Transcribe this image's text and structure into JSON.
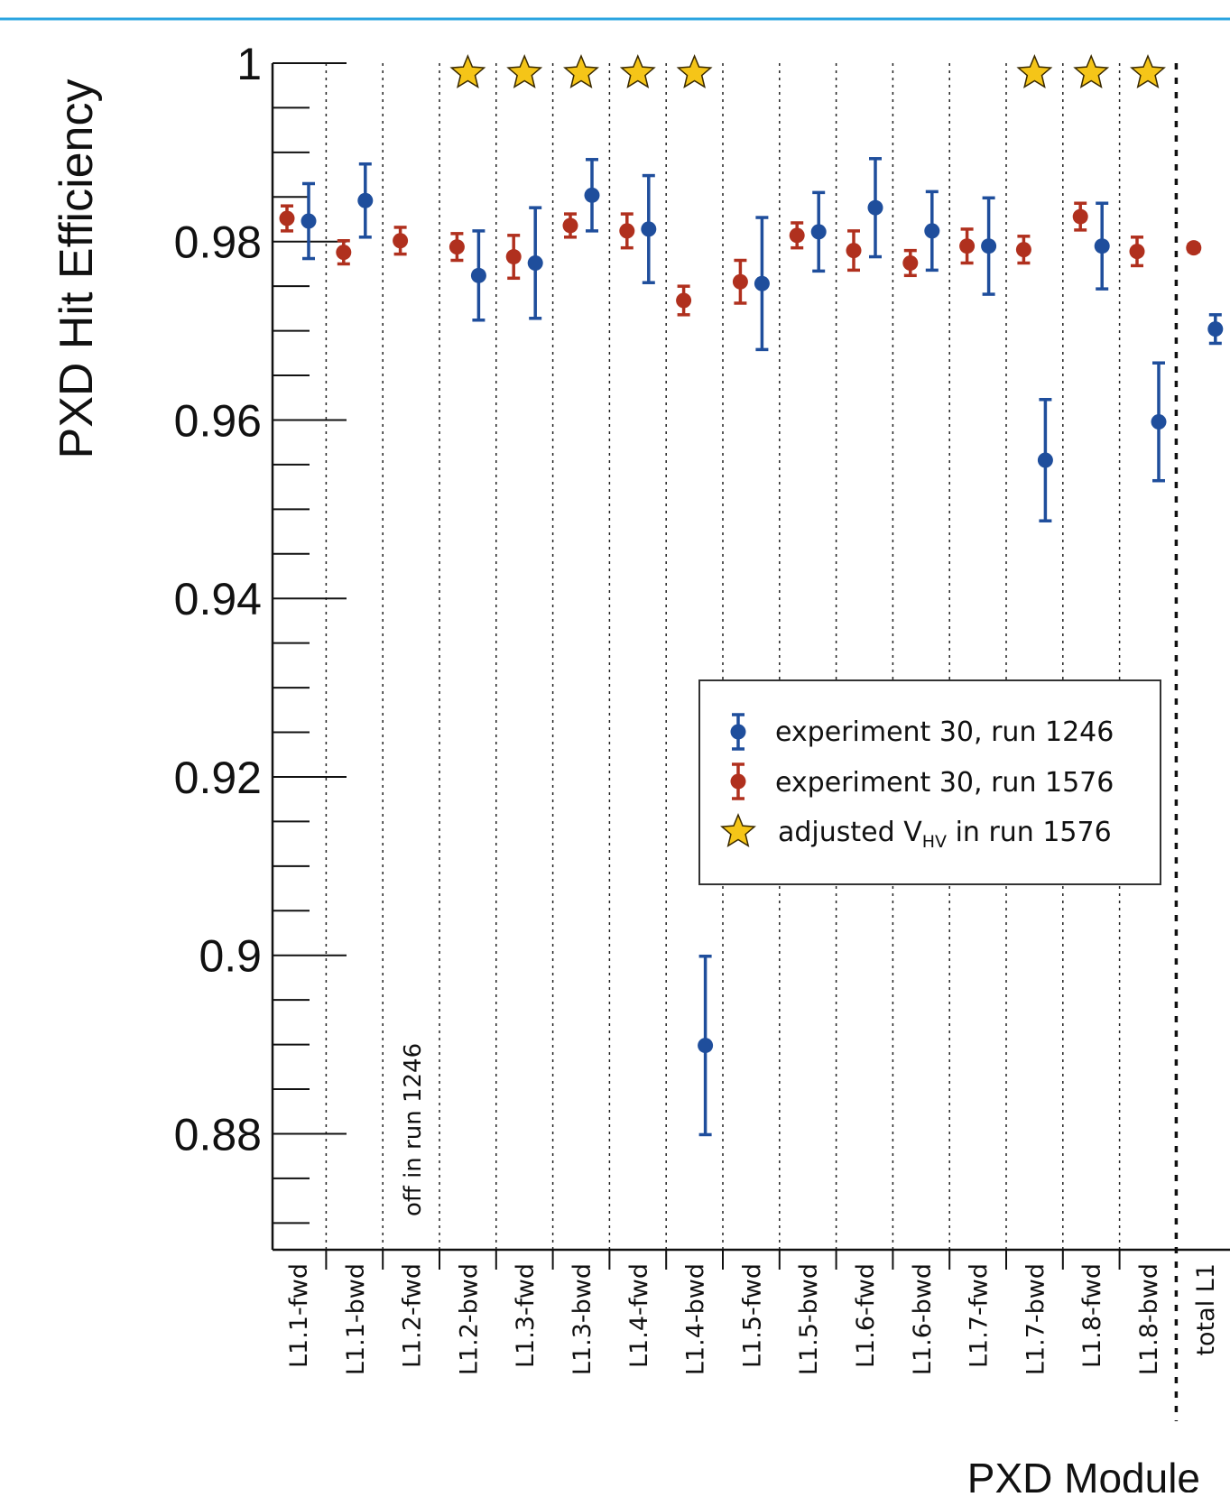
{
  "chart_data": {
    "type": "scatter",
    "xlabel": "PXD Module",
    "ylabel": "PXD Hit Efficiency",
    "ylim": [
      0.867,
      1.0
    ],
    "yticks": [
      "1",
      "0.98",
      "0.96",
      "0.94",
      "0.92",
      "0.9",
      "0.88"
    ],
    "yticks_values": [
      1.0,
      0.98,
      0.96,
      0.94,
      0.92,
      0.9,
      0.88
    ],
    "categories": [
      "L1.1-fwd",
      "L1.1-bwd",
      "L1.2-fwd",
      "L1.2-bwd",
      "L1.3-fwd",
      "L1.3-bwd",
      "L1.4-fwd",
      "L1.4-bwd",
      "L1.5-fwd",
      "L1.5-bwd",
      "L1.6-fwd",
      "L1.6-bwd",
      "L1.7-fwd",
      "L1.7-bwd",
      "L1.8-fwd",
      "L1.8-bwd",
      "total L1"
    ],
    "annotation": "off in run 1246",
    "grid": "dotted vertical separators",
    "legend_position": "center-right",
    "series": [
      {
        "name": "experiment 30, run 1246",
        "color": "#1f4e9c",
        "values": [
          0.9823,
          0.9846,
          null,
          0.9762,
          0.9776,
          0.9852,
          0.9814,
          0.8899,
          0.9753,
          0.9811,
          0.9838,
          0.9812,
          0.9795,
          0.9555,
          0.9795,
          0.9598,
          0.9702
        ],
        "errors": [
          0.0042,
          0.0041,
          null,
          0.005,
          0.0062,
          0.004,
          0.006,
          0.01,
          0.0074,
          0.0044,
          0.0055,
          0.0044,
          0.0054,
          0.0068,
          0.0048,
          0.0066,
          0.0016
        ]
      },
      {
        "name": "experiment 30, run 1576",
        "color": "#b0301e",
        "values": [
          0.9826,
          0.9788,
          0.9801,
          0.9794,
          0.9783,
          0.9818,
          0.9812,
          0.9734,
          0.9755,
          0.9807,
          0.979,
          0.9776,
          0.9795,
          0.9791,
          0.9828,
          0.9789,
          0.9793
        ],
        "errors": [
          0.0014,
          0.0013,
          0.0015,
          0.0015,
          0.0024,
          0.0013,
          0.0019,
          0.0016,
          0.0024,
          0.0014,
          0.0022,
          0.0014,
          0.0019,
          0.0015,
          0.0015,
          0.0016,
          0.0004
        ]
      },
      {
        "name": "adjusted V_HV in run 1576",
        "name_main": "adjusted V",
        "name_sub": "HV",
        "name_tail": " in run 1576",
        "color": "#f5c518",
        "marker": "star",
        "x_indices": [
          3,
          4,
          5,
          6,
          7,
          13,
          14,
          15
        ]
      }
    ]
  }
}
